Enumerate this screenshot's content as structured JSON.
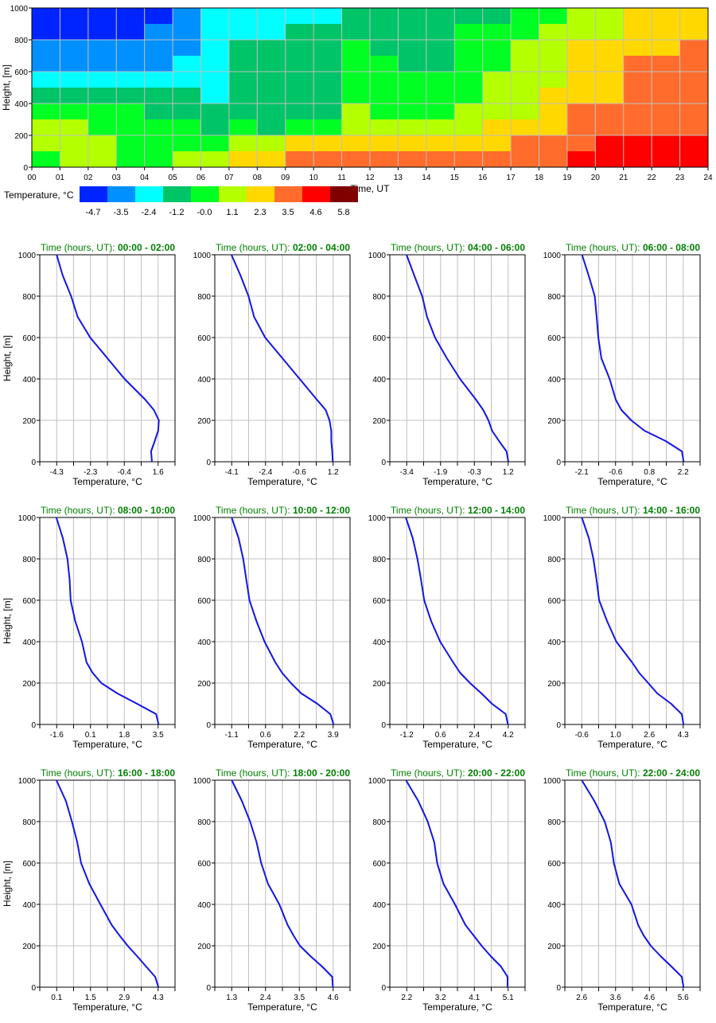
{
  "chart_data": [
    {
      "type": "heatmap",
      "xlabel": "Time, UT",
      "ylabel": "Height, [m]",
      "xlim": [
        0,
        24
      ],
      "ylim": [
        0,
        1000
      ],
      "x_tick_labels": [
        "00",
        "01",
        "02",
        "03",
        "04",
        "05",
        "06",
        "07",
        "08",
        "09",
        "10",
        "11",
        "12",
        "13",
        "14",
        "15",
        "16",
        "17",
        "18",
        "19",
        "20",
        "21",
        "22",
        "23",
        "24"
      ],
      "y_tick_labels": [
        "0",
        "200",
        "400",
        "600",
        "800",
        "1000"
      ],
      "grid": true,
      "colorbar": {
        "label": "Temperature, °C",
        "values": [
          "-4.7",
          "-3.5",
          "-2.4",
          "-1.2",
          "-0.0",
          "1.1",
          "2.3",
          "3.5",
          "4.6",
          "5.8"
        ],
        "colors": [
          "#0024ff",
          "#0090ff",
          "#00ffff",
          "#00c468",
          "#00ff22",
          "#b4ff00",
          "#ffd800",
          "#ff6c2c",
          "#ff0000",
          "#800000"
        ]
      },
      "cells_note_rows_top_to_bottom_hourly": "class index per hour per 100 m layer",
      "cells": [
        "000001222223333334455666",
        "000011222333333444555666",
        "111111233334333445566667",
        "111112233334433445566777",
        "222222233334444455566777",
        "333333233334444455666777",
        "444433333335444555677777",
        "554444343445555566677777",
        "555444455666666667778888",
        "455445566777777777788888"
      ]
    },
    {
      "type": "line",
      "title_prefix": "Time (hours, UT):",
      "title_range": "00:00 - 02:00",
      "xlabel": "Temperature, °C",
      "ylabel": "Height, [m]",
      "xlim": [
        -5.28,
        2.58
      ],
      "ylim": [
        0,
        1000
      ],
      "x_tick_labels": [
        "-4.3",
        "-2.3",
        "-0.4",
        "1.6"
      ],
      "y_tick_labels": [
        "0",
        "200",
        "400",
        "600",
        "800",
        "1000"
      ],
      "heights": [
        0,
        50,
        100,
        150,
        200,
        250,
        300,
        400,
        500,
        600,
        700,
        800,
        900,
        1000
      ],
      "temperatures": [
        1.24,
        1.19,
        1.4,
        1.6,
        1.64,
        1.35,
        0.85,
        -0.35,
        -1.35,
        -2.35,
        -3.08,
        -3.46,
        -3.95,
        -4.3
      ]
    },
    {
      "type": "line",
      "title_prefix": "Time (hours, UT):",
      "title_range": "02:00 - 04:00",
      "xlabel": "Temperature, °C",
      "ylabel": "",
      "xlim": [
        -4.98,
        2.08
      ],
      "ylim": [
        0,
        1000
      ],
      "x_tick_labels": [
        "-4.1",
        "-2.4",
        "-0.6",
        "1.2"
      ],
      "y_tick_labels": [
        "0",
        "200",
        "400",
        "600",
        "800",
        "1000"
      ],
      "heights": [
        0,
        50,
        100,
        150,
        200,
        250,
        300,
        400,
        500,
        600,
        700,
        800,
        900,
        1000
      ],
      "temperatures": [
        1.18,
        1.15,
        1.1,
        1.1,
        1.01,
        0.81,
        0.35,
        -0.55,
        -1.45,
        -2.35,
        -2.93,
        -3.22,
        -3.64,
        -4.11
      ]
    },
    {
      "type": "line",
      "title_prefix": "Time (hours, UT):",
      "title_range": "04:00 - 06:00",
      "xlabel": "Temperature, °C",
      "ylabel": "",
      "xlim": [
        -4.17,
        1.97
      ],
      "ylim": [
        0,
        1000
      ],
      "x_tick_labels": [
        "-3.4",
        "-1.9",
        "-0.3",
        "1.2"
      ],
      "y_tick_labels": [
        "0",
        "200",
        "400",
        "600",
        "800",
        "1000"
      ],
      "heights": [
        0,
        50,
        100,
        150,
        200,
        250,
        300,
        400,
        500,
        600,
        700,
        800,
        900,
        1000
      ],
      "temperatures": [
        1.21,
        1.13,
        0.79,
        0.47,
        0.31,
        0.07,
        -0.26,
        -0.98,
        -1.58,
        -2.12,
        -2.48,
        -2.7,
        -3.06,
        -3.41
      ]
    },
    {
      "type": "line",
      "title_prefix": "Time (hours, UT):",
      "title_range": "06:00 - 08:00",
      "xlabel": "Temperature, °C",
      "ylabel": "",
      "xlim": [
        -2.82,
        2.92
      ],
      "ylim": [
        0,
        1000
      ],
      "x_tick_labels": [
        "-2.1",
        "-0.6",
        "0.8",
        "2.2"
      ],
      "y_tick_labels": [
        "0",
        "200",
        "400",
        "600",
        "800",
        "1000"
      ],
      "heights": [
        0,
        50,
        100,
        150,
        200,
        250,
        300,
        400,
        500,
        600,
        700,
        800,
        900,
        1000
      ],
      "temperatures": [
        2.22,
        2.15,
        1.46,
        0.56,
        0.0,
        -0.42,
        -0.66,
        -0.92,
        -1.27,
        -1.4,
        -1.47,
        -1.55,
        -1.81,
        -2.09
      ]
    },
    {
      "type": "line",
      "title_prefix": "Time (hours, UT):",
      "title_range": "08:00 - 10:00",
      "xlabel": "Temperature, °C",
      "ylabel": "Height, [m]",
      "xlim": [
        -2.45,
        4.35
      ],
      "ylim": [
        0,
        1000
      ],
      "x_tick_labels": [
        "-1.6",
        "0.1",
        "1.8",
        "3.5"
      ],
      "y_tick_labels": [
        "0",
        "200",
        "400",
        "600",
        "800",
        "1000"
      ],
      "heights": [
        0,
        50,
        100,
        150,
        200,
        250,
        300,
        400,
        500,
        600,
        700,
        800,
        900,
        1000
      ],
      "temperatures": [
        3.52,
        3.4,
        2.44,
        1.45,
        0.64,
        0.2,
        -0.1,
        -0.33,
        -0.67,
        -0.9,
        -0.95,
        -1.06,
        -1.29,
        -1.62
      ]
    },
    {
      "type": "line",
      "title_prefix": "Time (hours, UT):",
      "title_range": "10:00 - 12:00",
      "xlabel": "Temperature, °C",
      "ylabel": "",
      "xlim": [
        -1.93,
        4.73
      ],
      "ylim": [
        0,
        1000
      ],
      "x_tick_labels": [
        "-1.1",
        "0.6",
        "2.2",
        "3.9"
      ],
      "y_tick_labels": [
        "0",
        "200",
        "400",
        "600",
        "800",
        "1000"
      ],
      "heights": [
        0,
        50,
        100,
        150,
        200,
        250,
        300,
        400,
        500,
        600,
        700,
        800,
        900,
        1000
      ],
      "temperatures": [
        3.92,
        3.76,
        3.12,
        2.33,
        1.82,
        1.38,
        1.05,
        0.52,
        0.12,
        -0.22,
        -0.38,
        -0.53,
        -0.76,
        -1.1
      ]
    },
    {
      "type": "line",
      "title_prefix": "Time (hours, UT):",
      "title_range": "12:00 - 14:00",
      "xlabel": "Temperature, °C",
      "ylabel": "",
      "xlim": [
        -2.1,
        5.1
      ],
      "ylim": [
        0,
        1000
      ],
      "x_tick_labels": [
        "-1.2",
        "0.6",
        "2.4",
        "4.2"
      ],
      "y_tick_labels": [
        "0",
        "200",
        "400",
        "600",
        "800",
        "1000"
      ],
      "heights": [
        0,
        50,
        100,
        150,
        200,
        250,
        300,
        400,
        500,
        600,
        700,
        800,
        900,
        1000
      ],
      "temperatures": [
        4.19,
        4.07,
        3.34,
        2.78,
        2.17,
        1.64,
        1.27,
        0.58,
        0.1,
        -0.27,
        -0.44,
        -0.63,
        -0.88,
        -1.25
      ]
    },
    {
      "type": "line",
      "title_prefix": "Time (hours, UT):",
      "title_range": "14:00 - 16:00",
      "xlabel": "Temperature, °C",
      "ylabel": "",
      "xlim": [
        -1.42,
        5.12
      ],
      "ylim": [
        0,
        1000
      ],
      "x_tick_labels": [
        "-0.6",
        "1.0",
        "2.6",
        "4.3"
      ],
      "y_tick_labels": [
        "0",
        "200",
        "400",
        "600",
        "800",
        "1000"
      ],
      "heights": [
        0,
        50,
        100,
        150,
        200,
        250,
        300,
        400,
        500,
        600,
        700,
        800,
        900,
        1000
      ],
      "temperatures": [
        4.32,
        4.23,
        3.72,
        3.05,
        2.61,
        2.17,
        1.83,
        1.07,
        0.62,
        0.24,
        0.11,
        -0.04,
        -0.26,
        -0.6
      ]
    },
    {
      "type": "line",
      "title_prefix": "Time (hours, UT):",
      "title_range": "16:00 - 18:00",
      "xlabel": "Temperature, °C",
      "ylabel": "Height, [m]",
      "xlim": [
        -0.6,
        5.0
      ],
      "ylim": [
        0,
        1000
      ],
      "x_tick_labels": [
        "0.1",
        "1.5",
        "2.9",
        "4.3"
      ],
      "y_tick_labels": [
        "0",
        "200",
        "400",
        "600",
        "800",
        "1000"
      ],
      "heights": [
        0,
        50,
        100,
        150,
        200,
        250,
        300,
        400,
        500,
        600,
        700,
        800,
        900,
        1000
      ],
      "temperatures": [
        4.31,
        4.18,
        3.8,
        3.43,
        3.04,
        2.7,
        2.38,
        1.91,
        1.45,
        1.11,
        0.95,
        0.73,
        0.48,
        0.09
      ]
    },
    {
      "type": "line",
      "title_prefix": "Time (hours, UT):",
      "title_range": "18:00 - 20:00",
      "xlabel": "Temperature, °C",
      "ylabel": "",
      "xlim": [
        0.75,
        5.15
      ],
      "ylim": [
        0,
        1000
      ],
      "x_tick_labels": [
        "1.3",
        "2.4",
        "3.5",
        "4.6"
      ],
      "y_tick_labels": [
        "0",
        "200",
        "400",
        "600",
        "800",
        "1000"
      ],
      "heights": [
        0,
        50,
        100,
        150,
        200,
        250,
        300,
        400,
        500,
        600,
        700,
        800,
        900,
        1000
      ],
      "temperatures": [
        4.59,
        4.57,
        4.24,
        3.86,
        3.52,
        3.31,
        3.12,
        2.85,
        2.48,
        2.26,
        2.11,
        1.9,
        1.63,
        1.3
      ]
    },
    {
      "type": "line",
      "title_prefix": "Time (hours, UT):",
      "title_range": "20:00 - 22:00",
      "xlabel": "Temperature, °C",
      "ylabel": "",
      "xlim": [
        1.72,
        5.58
      ],
      "ylim": [
        0,
        1000
      ],
      "x_tick_labels": [
        "2.2",
        "3.2",
        "4.1",
        "5.1"
      ],
      "y_tick_labels": [
        "0",
        "200",
        "400",
        "600",
        "800",
        "1000"
      ],
      "heights": [
        0,
        50,
        100,
        150,
        200,
        250,
        300,
        400,
        500,
        600,
        700,
        800,
        900,
        1000
      ],
      "temperatures": [
        5.08,
        5.08,
        4.89,
        4.6,
        4.34,
        4.11,
        3.88,
        3.58,
        3.25,
        3.07,
        2.99,
        2.8,
        2.53,
        2.18
      ]
    },
    {
      "type": "line",
      "title_prefix": "Time (hours, UT):",
      "title_range": "22:00 - 24:00",
      "xlabel": "Temperature, °C",
      "ylabel": "",
      "xlim": [
        2.1,
        6.1
      ],
      "ylim": [
        0,
        1000
      ],
      "x_tick_labels": [
        "2.6",
        "3.6",
        "4.6",
        "5.6"
      ],
      "y_tick_labels": [
        "0",
        "200",
        "400",
        "600",
        "800",
        "1000"
      ],
      "heights": [
        0,
        50,
        100,
        150,
        200,
        250,
        300,
        400,
        500,
        600,
        700,
        800,
        900,
        1000
      ],
      "temperatures": [
        5.61,
        5.56,
        5.25,
        4.93,
        4.64,
        4.43,
        4.27,
        4.07,
        3.71,
        3.55,
        3.46,
        3.28,
        2.97,
        2.6
      ]
    }
  ],
  "colors": {
    "profile_line": "#1414e6",
    "title": "#008000",
    "grid": "#c0c0c0"
  }
}
